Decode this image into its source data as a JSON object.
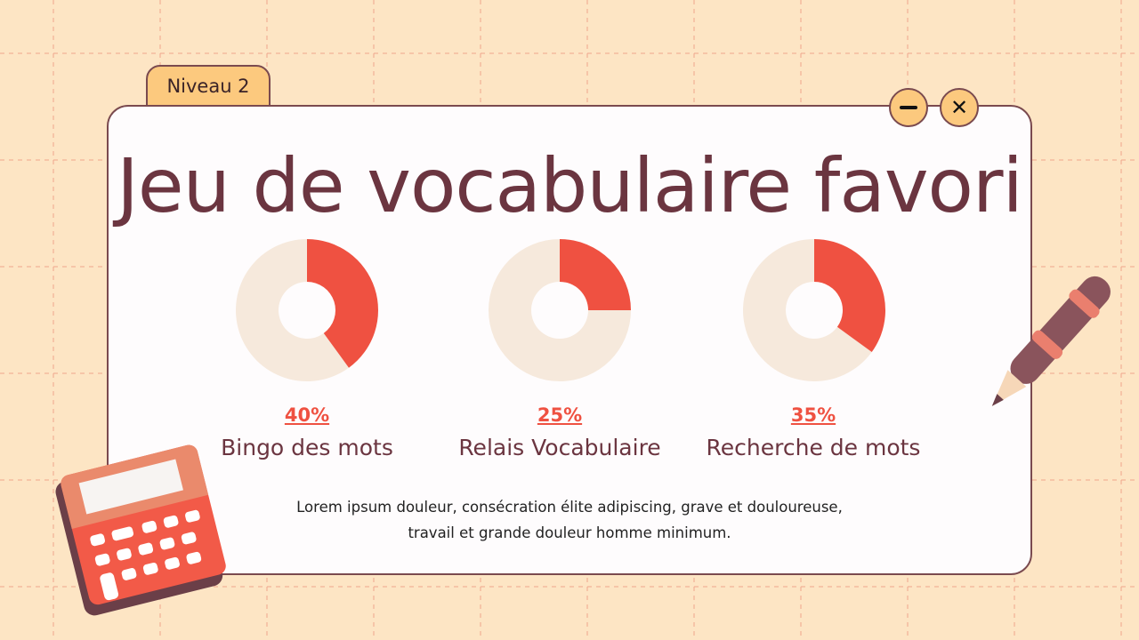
{
  "tab_label": "Niveau 2",
  "title": "Jeu de vocabulaire favori",
  "description_lines": [
    "Lorem ipsum douleur, consécration élite adipiscing, grave et douloureuse,",
    "travail et grande douleur homme minimum."
  ],
  "colors": {
    "accent": "#ef5141",
    "track": "#f6e9dc",
    "title": "#6b3540",
    "background": "#fde5c4"
  },
  "icons": [
    "minimize-icon",
    "close-icon",
    "calculator-icon",
    "pen-icon"
  ],
  "chart_data": [
    {
      "type": "pie",
      "variant": "donut",
      "label": "Bingo des mots",
      "value": 40,
      "value_label": "40%"
    },
    {
      "type": "pie",
      "variant": "donut",
      "label": "Relais Vocabulaire",
      "value": 25,
      "value_label": "25%"
    },
    {
      "type": "pie",
      "variant": "donut",
      "label": "Recherche de mots",
      "value": 35,
      "value_label": "35%"
    }
  ]
}
